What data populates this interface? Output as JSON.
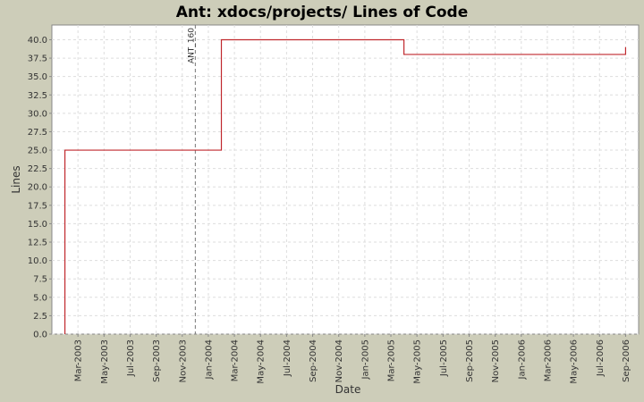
{
  "chart_data": {
    "type": "step",
    "title": "Ant: xdocs/projects/ Lines of Code",
    "x_label": "Date",
    "y_label": "Lines",
    "x": [
      "2003-02",
      "2004-02",
      "2005-04",
      "2006-09"
    ],
    "series": [
      {
        "name": "Lines",
        "color": "#c0282d",
        "values": [
          25,
          40,
          38,
          39
        ]
      }
    ],
    "xlim": [
      "2003-01",
      "2006-10"
    ],
    "xticks": [
      {
        "value": "2003-03",
        "label": "Mar-2003"
      },
      {
        "value": "2003-05",
        "label": "May-2003"
      },
      {
        "value": "2003-07",
        "label": "Jul-2003"
      },
      {
        "value": "2003-09",
        "label": "Sep-2003"
      },
      {
        "value": "2003-11",
        "label": "Nov-2003"
      },
      {
        "value": "2004-01",
        "label": "Jan-2004"
      },
      {
        "value": "2004-03",
        "label": "Mar-2004"
      },
      {
        "value": "2004-05",
        "label": "May-2004"
      },
      {
        "value": "2004-07",
        "label": "Jul-2004"
      },
      {
        "value": "2004-09",
        "label": "Sep-2004"
      },
      {
        "value": "2004-11",
        "label": "Nov-2004"
      },
      {
        "value": "2005-01",
        "label": "Jan-2005"
      },
      {
        "value": "2005-03",
        "label": "Mar-2005"
      },
      {
        "value": "2005-05",
        "label": "May-2005"
      },
      {
        "value": "2005-07",
        "label": "Jul-2005"
      },
      {
        "value": "2005-09",
        "label": "Sep-2005"
      },
      {
        "value": "2005-11",
        "label": "Nov-2005"
      },
      {
        "value": "2006-01",
        "label": "Jan-2006"
      },
      {
        "value": "2006-03",
        "label": "Mar-2006"
      },
      {
        "value": "2006-05",
        "label": "May-2006"
      },
      {
        "value": "2006-07",
        "label": "Jul-2006"
      },
      {
        "value": "2006-09",
        "label": "Sep-2006"
      }
    ],
    "ylim": [
      0,
      42
    ],
    "yticks": [
      {
        "value": 0,
        "label": "0.0"
      },
      2.5,
      {
        "value": 5,
        "label": "5.0"
      },
      7.5,
      {
        "value": 10,
        "label": "10.0"
      },
      12.5,
      {
        "value": 15,
        "label": "15.0"
      },
      17.5,
      {
        "value": 20,
        "label": "20.0"
      },
      22.5,
      {
        "value": 25,
        "label": "25.0"
      },
      27.5,
      {
        "value": 30,
        "label": "30.0"
      },
      32.5,
      {
        "value": 35,
        "label": "35.0"
      },
      37.5,
      {
        "value": 40,
        "label": "40.0"
      }
    ],
    "grid": true,
    "markers": [
      {
        "x": "2003-12",
        "label": "ANT_160"
      }
    ]
  }
}
